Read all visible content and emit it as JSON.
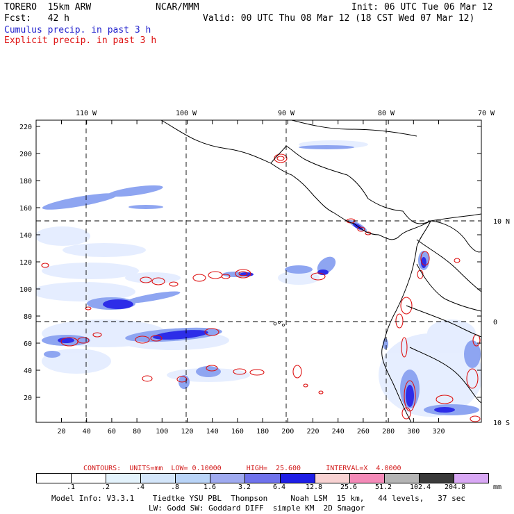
{
  "header": {
    "model": "TORERO  15km ARW",
    "center": "NCAR/MMM",
    "init": "Init: 06 UTC Tue 06 Mar 12",
    "fcst": "Fcst:   42 h",
    "valid": "Valid: 00 UTC Thu 08 Mar 12 (18 CST Wed 07 Mar 12)",
    "cumulus": "Cumulus precip. in past 3 h",
    "explicit": "Explicit precip. in past 3 h"
  },
  "map": {
    "lon_labels": [
      "110 W",
      "100 W",
      "90 W",
      "80 W",
      "70 W"
    ],
    "lat_labels": [
      "10 N",
      "0",
      "10 S"
    ],
    "y_ticks": [
      "220",
      "200",
      "180",
      "160",
      "140",
      "120",
      "100",
      "80",
      "60",
      "40",
      "20"
    ],
    "x_ticks": [
      "20",
      "40",
      "60",
      "80",
      "100",
      "120",
      "140",
      "160",
      "180",
      "200",
      "220",
      "240",
      "260",
      "280",
      "300",
      "320"
    ],
    "colors": {
      "cumulus_light": "#dde8ff",
      "cumulus_mid": "#8aa4f0",
      "cumulus_dark": "#2a2ae6",
      "explicit": "#dd1111",
      "coast": "#000000"
    }
  },
  "contours": {
    "label": "CONTOURS:  UNITS=mm  LOW= 0.10000      HIGH=  25.600      INTERVAL=X  4.0000"
  },
  "colorbar": {
    "labels": [
      ".1",
      ".2",
      ".4",
      ".8",
      "1.6",
      "3.2",
      "6.4",
      "12.8",
      "25.6",
      "51.2",
      "102.4",
      "204.8"
    ],
    "unit": "mm",
    "colors": [
      "#ffffff",
      "#ffffff",
      "#e4f3fc",
      "#d4e6fa",
      "#b9d4f7",
      "#9faaf0",
      "#6f72ec",
      "#1e1ee6",
      "#f8d2d2",
      "#f48ab8",
      "#b4b4b4",
      "#3a3a3a",
      "#d9a8f5"
    ]
  },
  "footer": {
    "line1": "Model Info: V3.3.1    Tiedtke YSU PBL  Thompson     Noah LSM  15 km,   44 levels,   37 sec",
    "line2": "LW: Godd SW: Goddard DIFF  simple KM  2D Smagor"
  }
}
